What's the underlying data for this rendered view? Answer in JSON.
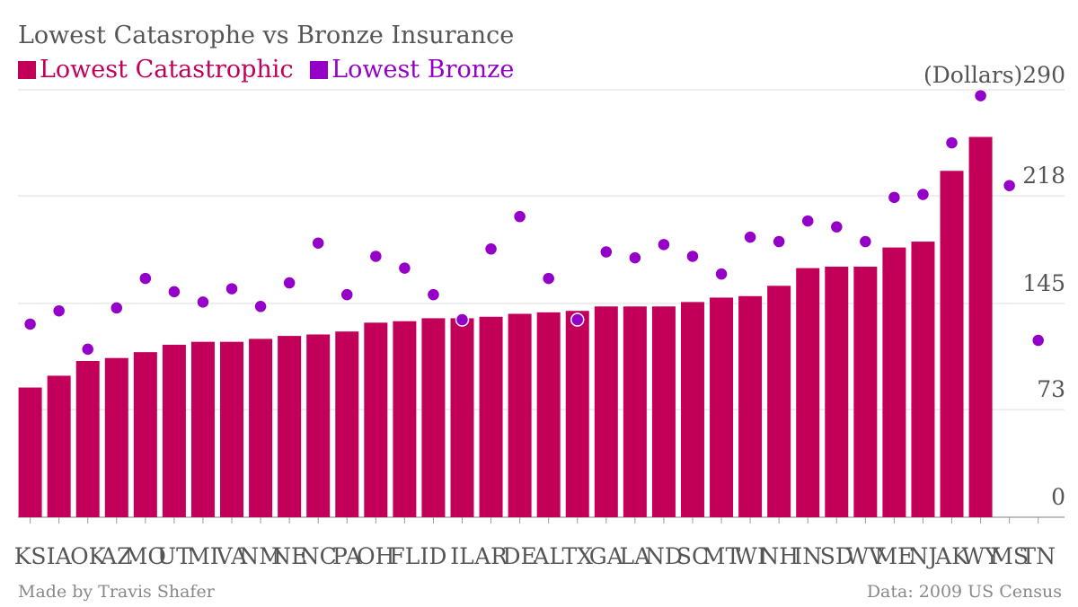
{
  "chart_data": {
    "type": "bar",
    "title": "Lowest Catasrophe vs Bronze Insurance",
    "unit_label": "(Dollars)",
    "categories": [
      "KS",
      "IA",
      "OK",
      "AZ",
      "MO",
      "UT",
      "MI",
      "VA",
      "NM",
      "NE",
      "NC",
      "PA",
      "OH",
      "FL",
      "ID",
      "IL",
      "AR",
      "DE",
      "AL",
      "TX",
      "GA",
      "LA",
      "ND",
      "SC",
      "MT",
      "WI",
      "NH",
      "IN",
      "SD",
      "WV",
      "ME",
      "NJ",
      "AK",
      "WY",
      "MS",
      "TN"
    ],
    "series": [
      {
        "name": "Lowest Catastrophic",
        "kind": "bar",
        "color": "#c2005a",
        "values": [
          88,
          96,
          106,
          108,
          112,
          117,
          119,
          119,
          121,
          123,
          124,
          126,
          132,
          133,
          135,
          135,
          136,
          138,
          139,
          140,
          143,
          143,
          143,
          146,
          149,
          150,
          157,
          169,
          170,
          170,
          183,
          187,
          235,
          258,
          null,
          null
        ]
      },
      {
        "name": "Lowest Bronze",
        "kind": "scatter",
        "color": "#9400c8",
        "values": [
          131,
          140,
          114,
          142,
          162,
          153,
          146,
          155,
          143,
          159,
          186,
          151,
          177,
          169,
          151,
          134,
          182,
          204,
          162,
          134,
          180,
          176,
          185,
          177,
          165,
          190,
          187,
          201,
          197,
          187,
          217,
          219,
          254,
          286,
          225,
          120
        ]
      }
    ],
    "y_ticks": [
      0,
      73,
      145,
      218,
      290
    ],
    "ylim": [
      0,
      290
    ],
    "grid": true
  },
  "colors": {
    "catastrophic": "#c2005a",
    "bronze": "#9400c8"
  },
  "footer": {
    "credit": "Made by Travis Shafer",
    "source": "Data: 2009 US Census"
  }
}
